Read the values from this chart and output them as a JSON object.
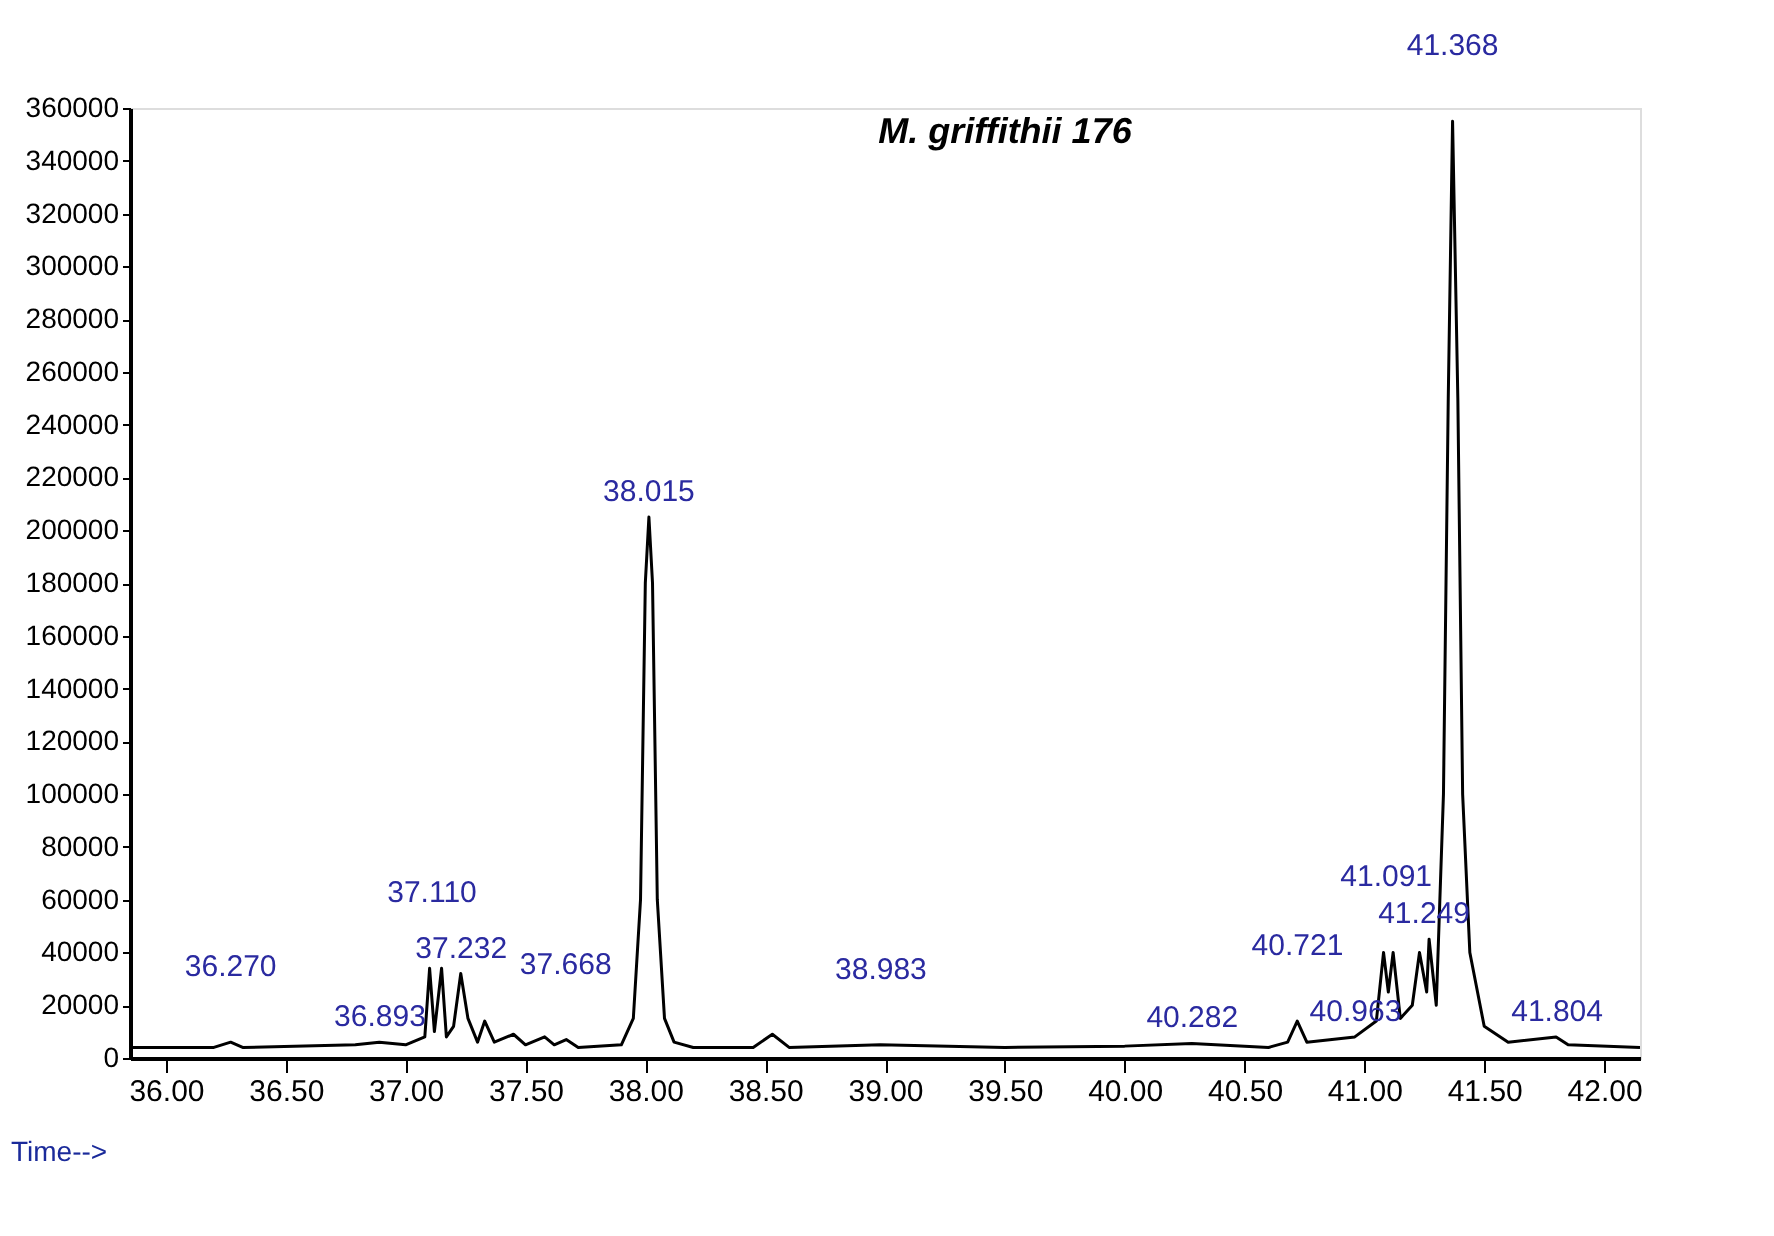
{
  "chart_data": {
    "type": "line",
    "title": "M. griffithii 176",
    "xlabel": "Time-->",
    "xlim": [
      35.85,
      42.15
    ],
    "ylim": [
      0,
      360000
    ],
    "xticks": [
      {
        "value": 36,
        "label": "36.00"
      },
      {
        "value": 36.5,
        "label": "36.50"
      },
      {
        "value": 37,
        "label": "37.00"
      },
      {
        "value": 37.5,
        "label": "37.50"
      },
      {
        "value": 38,
        "label": "38.00"
      },
      {
        "value": 38.5,
        "label": "38.50"
      },
      {
        "value": 39,
        "label": "39.00"
      },
      {
        "value": 39.5,
        "label": "39.50"
      },
      {
        "value": 40,
        "label": "40.00"
      },
      {
        "value": 40.5,
        "label": "40.50"
      },
      {
        "value": 41,
        "label": "41.00"
      },
      {
        "value": 41.5,
        "label": "41.50"
      },
      {
        "value": 42,
        "label": "42.00"
      }
    ],
    "yticks": [
      0,
      20000,
      40000,
      60000,
      80000,
      100000,
      120000,
      140000,
      160000,
      180000,
      200000,
      220000,
      240000,
      260000,
      280000,
      300000,
      320000,
      340000,
      360000
    ],
    "grid": false,
    "marker": "none",
    "line_style": "solid",
    "series": [
      {
        "color": "#000000",
        "x": [
          35.85,
          36.2,
          36.27,
          36.32,
          36.79,
          36.89,
          37.0,
          37.08,
          37.1,
          37.12,
          37.15,
          37.17,
          37.2,
          37.23,
          37.26,
          37.3,
          37.33,
          37.37,
          37.45,
          37.5,
          37.58,
          37.62,
          37.67,
          37.72,
          37.9,
          37.95,
          37.98,
          38.0,
          38.015,
          38.03,
          38.05,
          38.08,
          38.12,
          38.2,
          38.45,
          38.53,
          38.6,
          38.98,
          39.5,
          40.0,
          40.28,
          40.6,
          40.68,
          40.72,
          40.76,
          40.96,
          41.05,
          41.08,
          41.1,
          41.12,
          41.15,
          41.2,
          41.23,
          41.26,
          41.27,
          41.3,
          41.33,
          41.35,
          41.368,
          41.39,
          41.41,
          41.44,
          41.5,
          41.6,
          41.8,
          41.85,
          42.15
        ],
        "values": [
          4000,
          4000,
          6000,
          4000,
          5000,
          6000,
          5000,
          8000,
          34000,
          10000,
          34000,
          8000,
          12000,
          32000,
          15000,
          6000,
          14000,
          6000,
          9000,
          5000,
          8000,
          5000,
          7000,
          4000,
          5000,
          15000,
          60000,
          180000,
          205000,
          180000,
          60000,
          15000,
          6000,
          4000,
          4000,
          9000,
          4000,
          5000,
          4000,
          4500,
          5500,
          4000,
          6000,
          14000,
          6000,
          8000,
          14000,
          40000,
          25000,
          40000,
          15000,
          20000,
          40000,
          25000,
          45000,
          20000,
          100000,
          250000,
          355000,
          250000,
          100000,
          40000,
          12000,
          6000,
          8000,
          5000,
          4000
        ]
      }
    ],
    "annotations": [
      {
        "text": "36.270",
        "x": 36.27,
        "y": 6000
      },
      {
        "text": "36.893",
        "x": 36.893,
        "y": 6000
      },
      {
        "text": "37.110",
        "x": 37.11,
        "y": 34000
      },
      {
        "text": "37.232",
        "x": 37.232,
        "y": 32000
      },
      {
        "text": "37.668",
        "x": 37.668,
        "y": 7000
      },
      {
        "text": "38.015",
        "x": 38.015,
        "y": 205000
      },
      {
        "text": "38.983",
        "x": 38.983,
        "y": 5000
      },
      {
        "text": "40.282",
        "x": 40.282,
        "y": 5500
      },
      {
        "text": "40.721",
        "x": 40.721,
        "y": 14000
      },
      {
        "text": "40.963",
        "x": 40.963,
        "y": 8000
      },
      {
        "text": "41.091",
        "x": 41.091,
        "y": 40000
      },
      {
        "text": "41.249",
        "x": 41.249,
        "y": 45000
      },
      {
        "text": "41.368",
        "x": 41.368,
        "y": 355000
      },
      {
        "text": "41.804",
        "x": 41.804,
        "y": 8000
      }
    ]
  }
}
